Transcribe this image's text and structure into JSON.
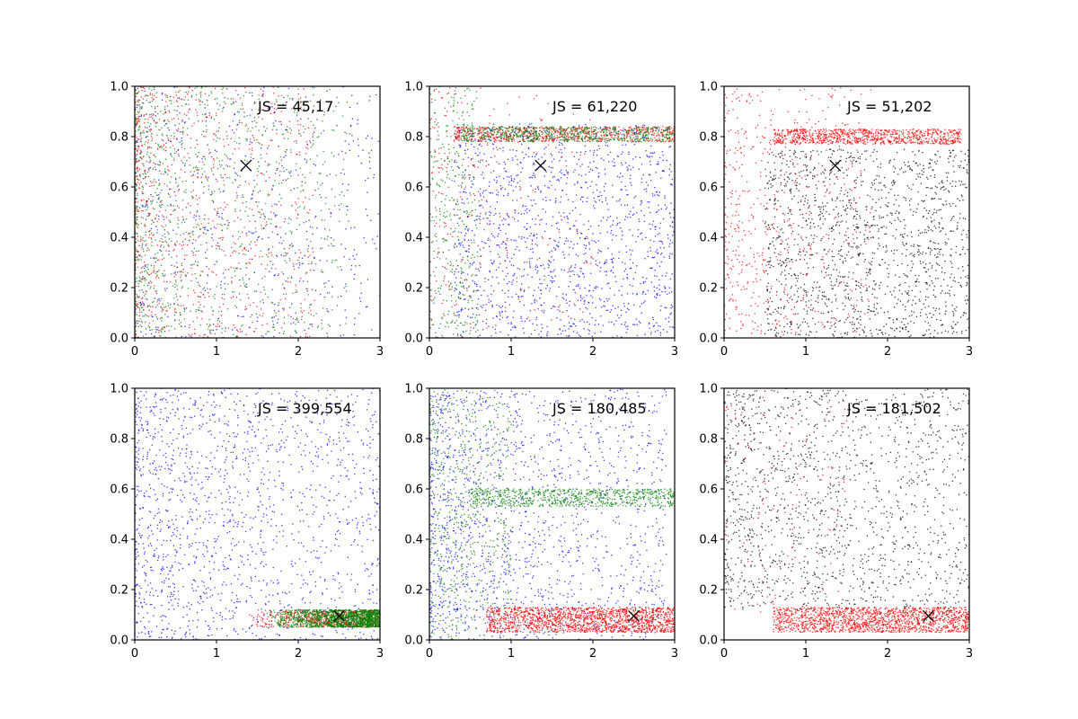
{
  "colors": {
    "blue": "#0000ff",
    "red": "#ff0000",
    "green": "#008000",
    "black": "#000000"
  },
  "chart_data": [
    {
      "type": "scatter",
      "annotation": "JS = 45,17",
      "xlim": [
        0,
        3
      ],
      "ylim": [
        0,
        1
      ],
      "xticks": [
        "0",
        "1",
        "2",
        "3"
      ],
      "yticks": [
        "0.0",
        "0.2",
        "0.4",
        "0.6",
        "0.8",
        "1.0"
      ],
      "marker": {
        "x": 1.36,
        "y": 0.685
      },
      "series": [
        {
          "color": "blue",
          "count": 700,
          "clusters": [
            {
              "x": [
                0.0,
                3.0
              ],
              "y": [
                0.0,
                1.0
              ],
              "xskew": 1.4,
              "w": 1
            }
          ]
        },
        {
          "color": "red",
          "count": 900,
          "clusters": [
            {
              "x": [
                0.0,
                2.2
              ],
              "y": [
                0.0,
                1.0
              ],
              "xskew": 1.8,
              "w": 1
            }
          ]
        },
        {
          "color": "green",
          "count": 1000,
          "clusters": [
            {
              "x": [
                0.0,
                2.6
              ],
              "y": [
                0.0,
                1.0
              ],
              "xskew": 1.8,
              "w": 1
            }
          ]
        }
      ]
    },
    {
      "type": "scatter",
      "annotation": "JS = 61,220",
      "xlim": [
        0,
        3
      ],
      "ylim": [
        0,
        1
      ],
      "xticks": [
        "0",
        "1",
        "2",
        "3"
      ],
      "yticks": [
        "0.0",
        "0.2",
        "0.4",
        "0.6",
        "0.8",
        "1.0"
      ],
      "marker": {
        "x": 1.36,
        "y": 0.685
      },
      "series": [
        {
          "color": "blue",
          "count": 1500,
          "clusters": [
            {
              "x": [
                0.3,
                3.0
              ],
              "y": [
                0.0,
                0.85
              ],
              "xskew": 1.0,
              "w": 1
            }
          ]
        },
        {
          "color": "red",
          "count": 1000,
          "clusters": [
            {
              "x": [
                0.3,
                3.0
              ],
              "y": [
                0.78,
                0.84
              ],
              "xskew": 1.0,
              "w": 0.7
            },
            {
              "x": [
                0.0,
                2.0
              ],
              "y": [
                0.0,
                1.0
              ],
              "xskew": 1.5,
              "w": 0.3
            }
          ]
        },
        {
          "color": "green",
          "count": 1000,
          "clusters": [
            {
              "x": [
                0.4,
                3.0
              ],
              "y": [
                0.78,
                0.84
              ],
              "xskew": 1.0,
              "w": 0.65
            },
            {
              "x": [
                0.0,
                0.6
              ],
              "y": [
                0.0,
                1.0
              ],
              "xskew": 1.0,
              "w": 0.35
            }
          ]
        }
      ]
    },
    {
      "type": "scatter",
      "annotation": "JS = 51,202",
      "xlim": [
        0,
        3
      ],
      "ylim": [
        0,
        1
      ],
      "xticks": [
        "0",
        "1",
        "2",
        "3"
      ],
      "yticks": [
        "0.0",
        "0.2",
        "0.4",
        "0.6",
        "0.8",
        "1.0"
      ],
      "marker": {
        "x": 1.36,
        "y": 0.685
      },
      "series": [
        {
          "color": "black",
          "count": 1500,
          "clusters": [
            {
              "x": [
                0.5,
                3.0
              ],
              "y": [
                0.0,
                0.75
              ],
              "xskew": 1.0,
              "w": 1
            }
          ]
        },
        {
          "color": "red",
          "count": 1500,
          "clusters": [
            {
              "x": [
                0.6,
                2.9
              ],
              "y": [
                0.77,
                0.83
              ],
              "xskew": 1.0,
              "w": 0.6
            },
            {
              "x": [
                0.0,
                1.8
              ],
              "y": [
                0.0,
                1.0
              ],
              "xskew": 1.6,
              "w": 0.4
            }
          ]
        }
      ]
    },
    {
      "type": "scatter",
      "annotation": "JS = 399,554",
      "xlim": [
        0,
        3
      ],
      "ylim": [
        0,
        1
      ],
      "xticks": [
        "0",
        "1",
        "2",
        "3"
      ],
      "yticks": [
        "0.0",
        "0.2",
        "0.4",
        "0.6",
        "0.8",
        "1.0"
      ],
      "marker": {
        "x": 2.5,
        "y": 0.095
      },
      "series": [
        {
          "color": "blue",
          "count": 1600,
          "clusters": [
            {
              "x": [
                0.0,
                3.0
              ],
              "y": [
                0.0,
                1.0
              ],
              "xskew": 1.3,
              "w": 1
            }
          ]
        },
        {
          "color": "red",
          "count": 600,
          "clusters": [
            {
              "x": [
                1.4,
                3.0
              ],
              "y": [
                0.05,
                0.12
              ],
              "xskew": 0.6,
              "w": 1
            }
          ]
        },
        {
          "color": "green",
          "count": 1500,
          "clusters": [
            {
              "x": [
                1.6,
                3.0
              ],
              "y": [
                0.05,
                0.12
              ],
              "xskew": 0.5,
              "w": 1
            }
          ]
        }
      ]
    },
    {
      "type": "scatter",
      "annotation": "JS = 180,485",
      "xlim": [
        0,
        3
      ],
      "ylim": [
        0,
        1
      ],
      "xticks": [
        "0",
        "1",
        "2",
        "3"
      ],
      "yticks": [
        "0.0",
        "0.2",
        "0.4",
        "0.6",
        "0.8",
        "1.0"
      ],
      "marker": {
        "x": 2.5,
        "y": 0.095
      },
      "series": [
        {
          "color": "blue",
          "count": 1600,
          "clusters": [
            {
              "x": [
                0.0,
                2.9
              ],
              "y": [
                0.0,
                1.0
              ],
              "xskew": 1.4,
              "w": 1
            }
          ]
        },
        {
          "color": "green",
          "count": 1300,
          "clusters": [
            {
              "x": [
                0.5,
                3.0
              ],
              "y": [
                0.53,
                0.6
              ],
              "xskew": 0.9,
              "w": 0.55
            },
            {
              "x": [
                0.0,
                1.0
              ],
              "y": [
                0.0,
                1.0
              ],
              "xskew": 1.2,
              "w": 0.45
            }
          ]
        },
        {
          "color": "red",
          "count": 1600,
          "clusters": [
            {
              "x": [
                0.7,
                3.0
              ],
              "y": [
                0.03,
                0.13
              ],
              "xskew": 0.9,
              "w": 1
            }
          ]
        }
      ]
    },
    {
      "type": "scatter",
      "annotation": "JS = 181,502",
      "xlim": [
        0,
        3
      ],
      "ylim": [
        0,
        1
      ],
      "xticks": [
        "0",
        "1",
        "2",
        "3"
      ],
      "yticks": [
        "0.0",
        "0.2",
        "0.4",
        "0.6",
        "0.8",
        "1.0"
      ],
      "marker": {
        "x": 2.5,
        "y": 0.095
      },
      "series": [
        {
          "color": "black",
          "count": 1500,
          "clusters": [
            {
              "x": [
                0.0,
                3.0
              ],
              "y": [
                0.12,
                1.0
              ],
              "xskew": 1.2,
              "w": 1
            }
          ]
        },
        {
          "color": "red",
          "count": 1700,
          "clusters": [
            {
              "x": [
                0.6,
                3.0
              ],
              "y": [
                0.03,
                0.13
              ],
              "xskew": 0.9,
              "w": 0.92
            },
            {
              "x": [
                0.0,
                1.5
              ],
              "y": [
                0.1,
                1.0
              ],
              "xskew": 1.0,
              "w": 0.08
            }
          ]
        }
      ]
    }
  ]
}
